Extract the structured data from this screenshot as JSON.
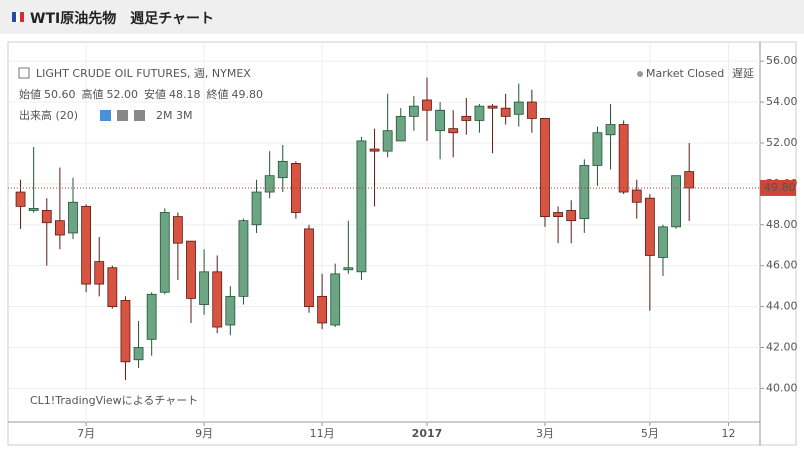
{
  "header": {
    "title": "WTI原油先物　週足チャート"
  },
  "chart_data": {
    "type": "candlestick",
    "title": "LIGHT CRUDE OIL FUTURES, 週, NYMEX",
    "status": "Market Closed",
    "delay": "遅延",
    "ohlc_legend": [
      {
        "label": "始値",
        "value": "50.60"
      },
      {
        "label": "高値",
        "value": "52.00"
      },
      {
        "label": "安値",
        "value": "48.18"
      },
      {
        "label": "終値",
        "value": "49.80"
      }
    ],
    "volume_label": "出来高 (20)",
    "ranges": [
      "2M",
      "3M"
    ],
    "watermark": "CL1!TradingViewによるチャート",
    "up_color": "#6ba583",
    "down_color": "#d75442",
    "open": [
      49.6,
      48.7,
      48.7,
      48.2,
      47.6,
      48.9,
      46.2,
      45.9,
      44.3,
      41.4,
      42.4,
      44.7,
      48.4,
      47.2,
      44.1,
      45.7,
      43.1,
      44.5,
      48.0,
      49.6,
      50.3,
      51.0,
      47.8,
      44.5,
      43.1,
      45.8,
      45.7,
      51.7,
      51.6,
      52.1,
      53.3,
      54.1,
      52.6,
      52.7,
      53.3,
      53.1,
      53.8,
      53.7,
      53.4,
      54.0,
      53.2,
      48.6,
      48.7,
      48.3,
      50.9,
      52.4,
      52.9,
      49.7,
      49.3,
      46.4,
      47.9,
      50.6
    ],
    "high": [
      50.2,
      51.8,
      49.3,
      50.8,
      50.3,
      49.0,
      47.4,
      46.0,
      44.5,
      43.3,
      44.7,
      48.8,
      48.6,
      47.2,
      46.8,
      46.5,
      45.0,
      48.3,
      50.2,
      51.6,
      51.9,
      51.1,
      48.0,
      45.6,
      46.1,
      48.2,
      52.3,
      52.7,
      54.4,
      53.7,
      54.3,
      55.2,
      54.0,
      53.6,
      54.2,
      53.9,
      53.9,
      54.4,
      54.9,
      54.6,
      53.2,
      48.9,
      49.2,
      51.2,
      52.8,
      53.9,
      53.1,
      50.2,
      49.5,
      48.0,
      50.4,
      52.0
    ],
    "low": [
      47.8,
      48.6,
      46.0,
      46.8,
      47.3,
      44.7,
      44.5,
      43.9,
      40.4,
      41.0,
      41.6,
      44.6,
      45.3,
      43.2,
      43.6,
      42.7,
      42.6,
      44.1,
      47.6,
      49.3,
      49.6,
      48.3,
      43.7,
      42.9,
      43.0,
      45.6,
      45.3,
      48.9,
      51.3,
      52.1,
      52.6,
      52.1,
      51.2,
      51.3,
      52.4,
      52.5,
      51.5,
      52.9,
      52.8,
      52.5,
      47.9,
      47.1,
      47.1,
      47.6,
      49.9,
      50.7,
      49.5,
      48.3,
      43.8,
      45.5,
      47.8,
      48.18
    ],
    "close": [
      48.9,
      48.8,
      48.1,
      47.5,
      49.1,
      45.1,
      45.1,
      44.0,
      41.3,
      42.0,
      44.6,
      48.6,
      47.1,
      44.4,
      45.7,
      43.0,
      44.5,
      48.2,
      49.6,
      50.4,
      51.1,
      48.6,
      44.0,
      43.2,
      45.6,
      45.9,
      52.1,
      51.6,
      52.6,
      53.3,
      53.8,
      53.6,
      53.6,
      52.5,
      53.1,
      53.8,
      53.7,
      53.3,
      54.0,
      53.2,
      48.4,
      48.4,
      48.2,
      50.9,
      52.5,
      52.9,
      49.6,
      49.1,
      46.5,
      47.9,
      50.4,
      49.8
    ],
    "last_price": {
      "value": 49.8,
      "label": "49.80"
    },
    "xlim": [
      -0.5,
      56.4
    ],
    "xticks": [
      {
        "value": 5,
        "label": "7月"
      },
      {
        "value": 14,
        "label": "9月"
      },
      {
        "value": 23,
        "label": "11月"
      },
      {
        "value": 31,
        "label": "2017"
      },
      {
        "value": 40,
        "label": "3月"
      },
      {
        "value": 48,
        "label": "5月"
      },
      {
        "value": 54,
        "label": "12"
      }
    ],
    "ylim": [
      38.7,
      56.3
    ],
    "yticks": [
      {
        "value": 40,
        "label": "40.00"
      },
      {
        "value": 42,
        "label": "42.00"
      },
      {
        "value": 44,
        "label": "44.00"
      },
      {
        "value": 46,
        "label": "46.00"
      },
      {
        "value": 48,
        "label": "48.00"
      },
      {
        "value": 50,
        "label": "50.00"
      },
      {
        "value": 52,
        "label": "52.00"
      },
      {
        "value": 54,
        "label": "54.00"
      },
      {
        "value": 56,
        "label": "56.00"
      }
    ],
    "grid": true
  }
}
